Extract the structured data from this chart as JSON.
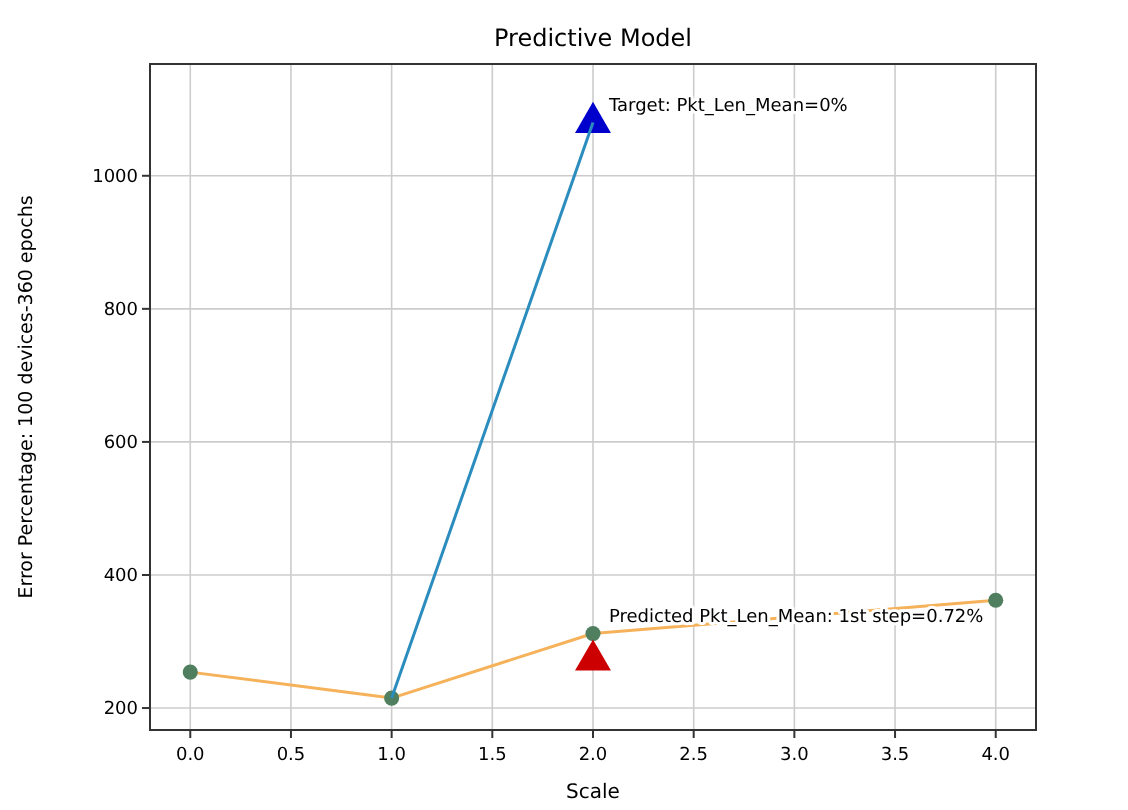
{
  "chart_data": {
    "type": "line",
    "title": "Predictive Model",
    "xlabel": "Scale",
    "ylabel": "Error Percentage: 100 devices-360 epochs",
    "xlim": [
      -0.2,
      4.2
    ],
    "xticks": [
      {
        "value": 0,
        "label": "0.0"
      },
      0.5,
      {
        "value": 1,
        "label": "1.0"
      },
      1.5,
      {
        "value": 2,
        "label": "2.0"
      },
      2.5,
      {
        "value": 3,
        "label": "3.0"
      },
      3.5,
      {
        "value": 4,
        "label": "4.0"
      }
    ],
    "ylim": [
      167,
      1168
    ],
    "yticks": [
      200,
      400,
      600,
      800,
      1000
    ],
    "grid": true,
    "series": [
      {
        "color": "#f5b25a",
        "x": [
          0,
          1,
          2,
          4
        ],
        "values": [
          254,
          215,
          312,
          362
        ],
        "marker": "none"
      },
      {
        "type": "scatter",
        "color": "#4f7f5f",
        "x": [
          0,
          1,
          2,
          4
        ],
        "values": [
          254,
          215,
          312,
          362
        ],
        "marker": "circle"
      },
      {
        "type": "scatter",
        "color": "#0000cc",
        "x": [
          2
        ],
        "values": [
          1080
        ],
        "marker": "triangle"
      },
      {
        "color": "#2b8cbe",
        "x": [
          1,
          2
        ],
        "values": [
          215,
          1080
        ],
        "marker": "none"
      },
      {
        "type": "scatter",
        "color": "#cc0000",
        "x": [
          2
        ],
        "values": [
          272
        ],
        "marker": "triangle"
      }
    ],
    "annotations": [
      {
        "text": "Target: Pkt_Len_Mean=0%",
        "x": 2,
        "y": 1080
      },
      {
        "text": "Predicted Pkt_Len_Mean: 1st step=0.72%",
        "x": 2,
        "y": 312
      }
    ]
  }
}
